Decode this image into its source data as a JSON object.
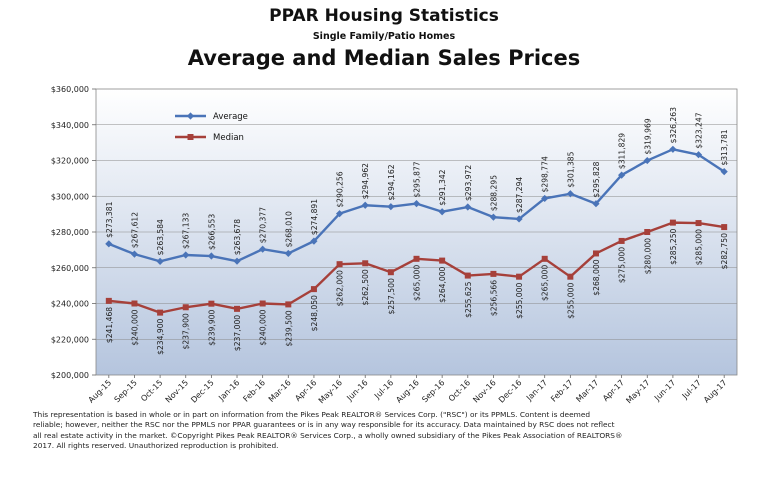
{
  "header": {
    "title": "PPAR Housing Statistics",
    "subtitle": "Single Family/Patio Homes",
    "heading": "Average and Median Sales Prices"
  },
  "chart_data": {
    "type": "line",
    "title": "Average and Median Sales Prices",
    "ylim": [
      200000,
      360000
    ],
    "ytick_step": 20000,
    "ytick_labels": [
      "$200,000",
      "$220,000",
      "$240,000",
      "$260,000",
      "$280,000",
      "$300,000",
      "$320,000",
      "$340,000",
      "$360,000"
    ],
    "grid": true,
    "legend_position": "top-left",
    "categories": [
      "Aug-15",
      "Sep-15",
      "Oct-15",
      "Nov-15",
      "Dec-15",
      "Jan-16",
      "Feb-16",
      "Mar-16",
      "Apr-16",
      "May-16",
      "Jun-16",
      "Jul-16",
      "Aug-16",
      "Sep-16",
      "Oct-16",
      "Nov-16",
      "Dec-16",
      "Jan-17",
      "Feb-17",
      "Mar-17",
      "Apr-17",
      "May-17",
      "Jun-17",
      "Jul-17",
      "Aug-17"
    ],
    "series": [
      {
        "name": "Average",
        "color": "#4a74b8",
        "marker": "diamond",
        "values": [
          273381,
          267612,
          263584,
          267133,
          266553,
          263678,
          270377,
          268010,
          274891,
          290256,
          294962,
          294162,
          295877,
          291342,
          293972,
          288295,
          287294,
          298774,
          301385,
          295828,
          311829,
          319969,
          326263,
          323247,
          313781
        ],
        "labels": [
          "$273,381",
          "$267,612",
          "$263,584",
          "$267,133",
          "$266,553",
          "$263,678",
          "$270,377",
          "$268,010",
          "$274,891",
          "$290,256",
          "$294,962",
          "$294,162",
          "$295,877",
          "$291,342",
          "$293,972",
          "$288,295",
          "$287,294",
          "$298,774",
          "$301,385",
          "$295,828",
          "$311,829",
          "$319,969",
          "$326,263",
          "$323,247",
          "$313,781"
        ]
      },
      {
        "name": "Median",
        "color": "#a6403a",
        "marker": "square",
        "values": [
          241468,
          240000,
          234900,
          237900,
          239900,
          237000,
          240000,
          239500,
          248050,
          262000,
          262500,
          257500,
          265000,
          264000,
          255625,
          256566,
          255000,
          265000,
          255000,
          268000,
          275000,
          280000,
          285250,
          285000,
          282750
        ],
        "labels": [
          "$241,468",
          "$240,000",
          "$234,900",
          "$237,900",
          "$239,900",
          "$237,000",
          "$240,000",
          "$239,500",
          "$248,050",
          "$262,000",
          "$262,500",
          "$257,500",
          "$265,000",
          "$264,000",
          "$255,625",
          "$256,566",
          "$255,000",
          "$265,000",
          "$255,000",
          "$268,000",
          "$275,000",
          "$280,000",
          "$285,250",
          "$285,000",
          "$282,750"
        ]
      }
    ]
  },
  "footer": {
    "disclaimer_lines": [
      "This representation is based in whole or in part on information from the Pikes Peak REALTOR® Services Corp. (\"RSC\") or its PPMLS. Content is deemed",
      "reliable; however, neither the RSC nor the PPMLS nor PPAR guarantees or is in any way responsible for its accuracy. Data maintained by RSC does not reflect",
      "all real estate activity in the market. ©Copyright Pikes Peak REALTOR® Services Corp., a wholly owned subsidiary of the Pikes Peak Association of REALTORS®",
      "2017. All rights reserved. Unauthorized reproduction is prohibited."
    ]
  }
}
